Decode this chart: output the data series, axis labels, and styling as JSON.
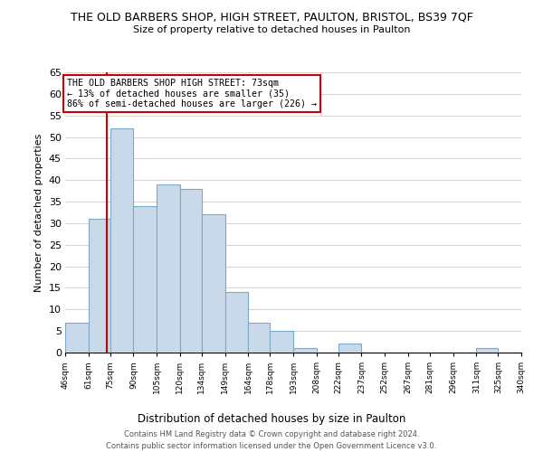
{
  "title": "THE OLD BARBERS SHOP, HIGH STREET, PAULTON, BRISTOL, BS39 7QF",
  "subtitle": "Size of property relative to detached houses in Paulton",
  "xlabel": "Distribution of detached houses by size in Paulton",
  "ylabel": "Number of detached properties",
  "bar_edges": [
    46,
    61,
    75,
    90,
    105,
    120,
    134,
    149,
    164,
    178,
    193,
    208,
    222,
    237,
    252,
    267,
    281,
    296,
    311,
    325,
    340
  ],
  "bar_heights": [
    7,
    31,
    52,
    34,
    39,
    38,
    32,
    14,
    7,
    5,
    1,
    0,
    2,
    0,
    0,
    0,
    0,
    0,
    1,
    0
  ],
  "tick_labels": [
    "46sqm",
    "61sqm",
    "75sqm",
    "90sqm",
    "105sqm",
    "120sqm",
    "134sqm",
    "149sqm",
    "164sqm",
    "178sqm",
    "193sqm",
    "208sqm",
    "222sqm",
    "237sqm",
    "252sqm",
    "267sqm",
    "281sqm",
    "296sqm",
    "311sqm",
    "325sqm",
    "340sqm"
  ],
  "bar_color": "#c9d9ea",
  "bar_edge_color": "#7aaac8",
  "property_line_x": 73,
  "property_line_color": "#cc0000",
  "ylim": [
    0,
    65
  ],
  "yticks": [
    0,
    5,
    10,
    15,
    20,
    25,
    30,
    35,
    40,
    45,
    50,
    55,
    60,
    65
  ],
  "annotation_text": "THE OLD BARBERS SHOP HIGH STREET: 73sqm\n← 13% of detached houses are smaller (35)\n86% of semi-detached houses are larger (226) →",
  "footer_line1": "Contains HM Land Registry data © Crown copyright and database right 2024.",
  "footer_line2": "Contains public sector information licensed under the Open Government Licence v3.0.",
  "bg_color": "#ffffff",
  "grid_color": "#cccccc"
}
